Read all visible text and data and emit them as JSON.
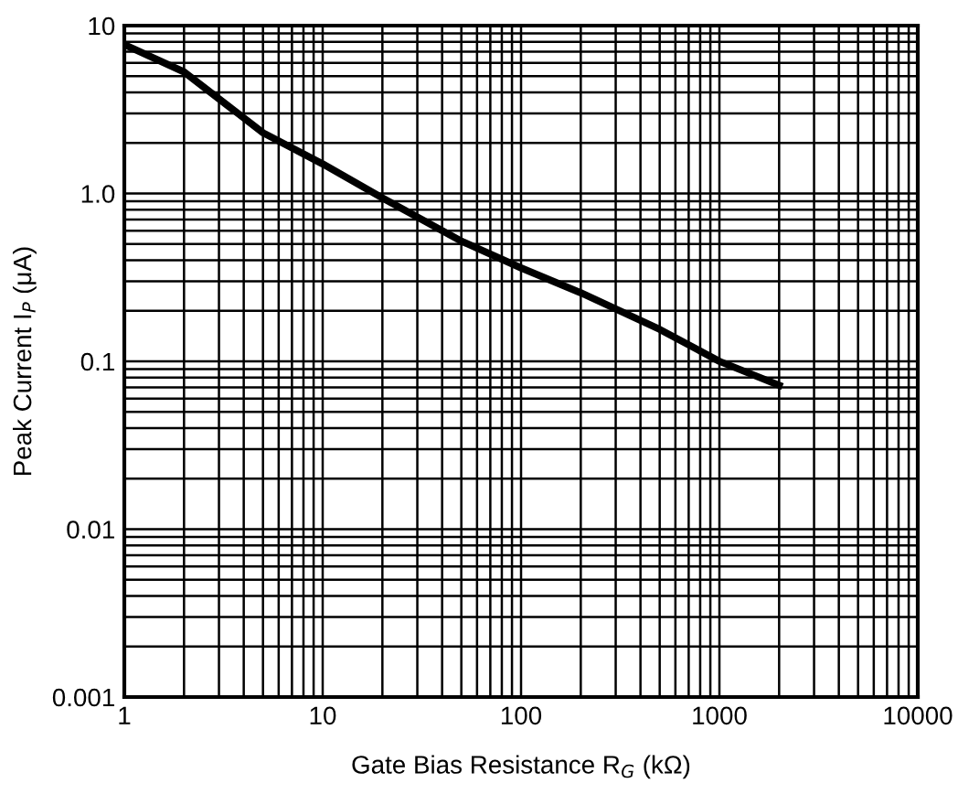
{
  "chart_data": {
    "type": "line",
    "xlabel": "Gate Bias Resistance R$_{G}$ (kΩ)",
    "ylabel": "Peak Current I$_{P}$ (μA)",
    "x": [
      1,
      2,
      5,
      10,
      20,
      50,
      100,
      200,
      500,
      1000,
      2000
    ],
    "series": [
      {
        "color": "#000000",
        "values": [
          7.7,
          5.3,
          2.3,
          1.5,
          0.94,
          0.52,
          0.36,
          0.256,
          0.155,
          0.1,
          0.072
        ]
      }
    ],
    "log": "xy",
    "xlim": [
      1,
      10000
    ],
    "ylim": [
      0.001,
      10
    ],
    "xticks": [
      1,
      10,
      100,
      1000,
      10000
    ],
    "yticks": [
      {
        "value": 0.001,
        "label": "0.001"
      },
      {
        "value": 0.01,
        "label": "0.01"
      },
      {
        "value": 0.1,
        "label": "0.1"
      },
      {
        "value": 1,
        "label": "1.0"
      },
      {
        "value": 10,
        "label": "10"
      }
    ],
    "grid": true,
    "marker": "none",
    "line_style": "solid"
  }
}
